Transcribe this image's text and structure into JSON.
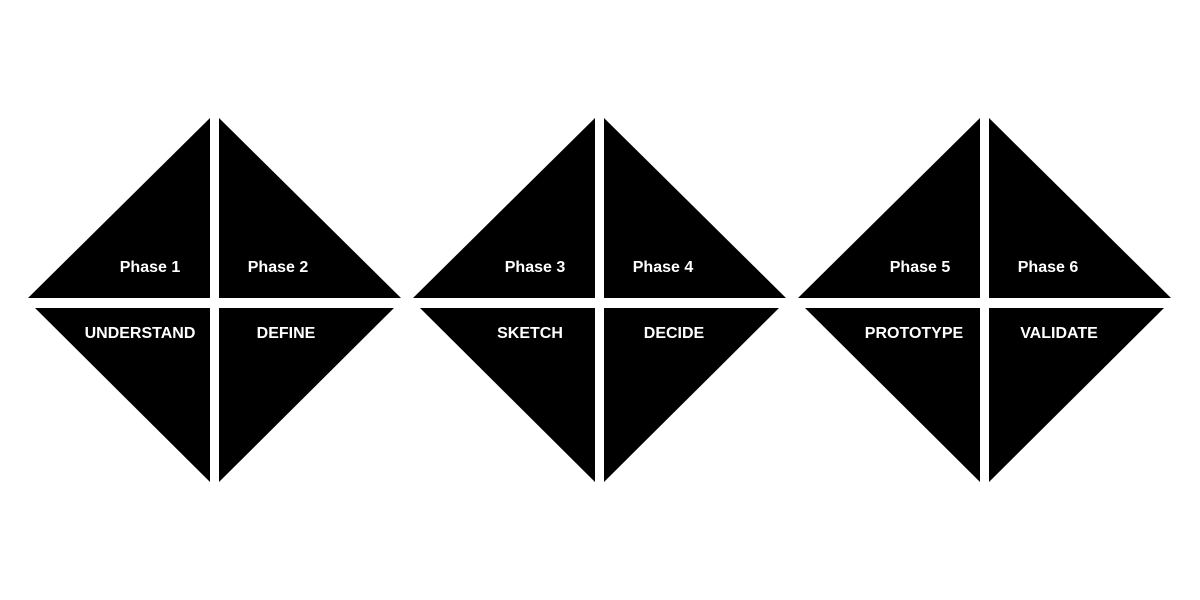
{
  "diagram": {
    "diamonds": [
      {
        "left": {
          "phase": "Phase 1",
          "stage": "UNDERSTAND"
        },
        "right": {
          "phase": "Phase 2",
          "stage": "DEFINE"
        }
      },
      {
        "left": {
          "phase": "Phase 3",
          "stage": "SKETCH"
        },
        "right": {
          "phase": "Phase 4",
          "stage": "DECIDE"
        }
      },
      {
        "left": {
          "phase": "Phase 5",
          "stage": "PROTOTYPE"
        },
        "right": {
          "phase": "Phase 6",
          "stage": "VALIDATE"
        }
      }
    ],
    "colors": {
      "shape": "#000000",
      "text": "#ffffff",
      "background": "#ffffff"
    }
  }
}
